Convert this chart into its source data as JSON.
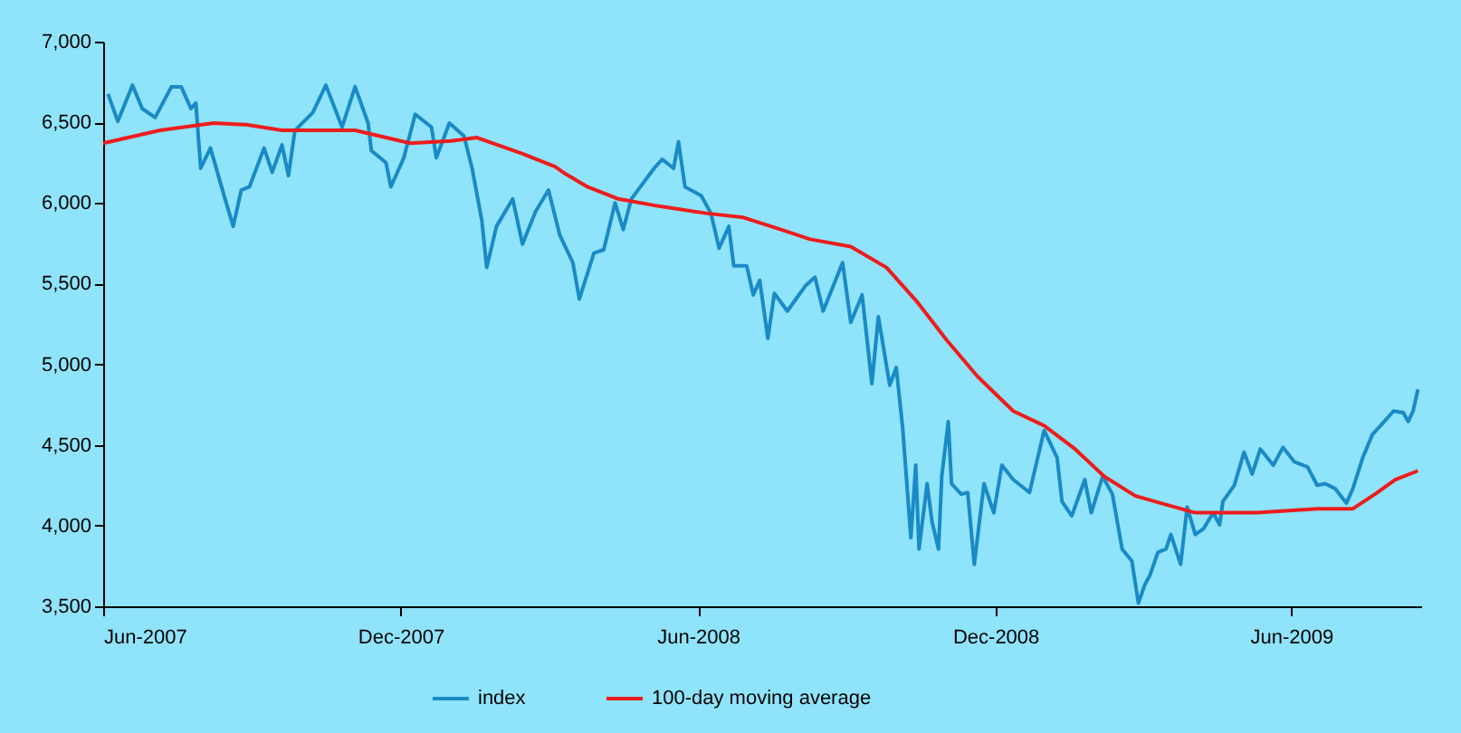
{
  "chart_data": {
    "type": "line",
    "legend": "bottom",
    "grid": false,
    "marker": "none",
    "line_style": "solid",
    "xlim": [
      "2007-06-01",
      "2009-08-20"
    ],
    "xticks": [
      {
        "value": "2007-06-01",
        "label": "Jun-2007"
      },
      {
        "value": "2007-12-01",
        "label": "Dec-2007"
      },
      {
        "value": "2008-06-01",
        "label": "Jun-2008"
      },
      {
        "value": "2008-12-01",
        "label": "Dec-2008"
      },
      {
        "value": "2009-06-01",
        "label": "Jun-2009"
      }
    ],
    "ylim": [
      3500,
      7000
    ],
    "yticks": [
      {
        "value": 3500,
        "label": "3,500"
      },
      {
        "value": 4000,
        "label": "4,000"
      },
      {
        "value": 4500,
        "label": "4,500"
      },
      {
        "value": 5000,
        "label": "5,000"
      },
      {
        "value": 5500,
        "label": "5,500"
      },
      {
        "value": 6000,
        "label": "6,000"
      },
      {
        "value": 6500,
        "label": "6,500"
      },
      {
        "value": 7000,
        "label": "7,000"
      }
    ],
    "series": [
      {
        "name": "index",
        "color": "#1a8ac6",
        "x": [
          "2007-06-04",
          "2007-06-10",
          "2007-06-19",
          "2007-06-25",
          "2007-07-03",
          "2007-07-13",
          "2007-07-19",
          "2007-07-25",
          "2007-07-28",
          "2007-07-31",
          "2007-08-06",
          "2007-08-15",
          "2007-08-20",
          "2007-08-25",
          "2007-08-30",
          "2007-09-08",
          "2007-09-13",
          "2007-09-19",
          "2007-09-23",
          "2007-09-27",
          "2007-10-08",
          "2007-10-16",
          "2007-10-26",
          "2007-11-03",
          "2007-11-11",
          "2007-11-13",
          "2007-11-22",
          "2007-11-25",
          "2007-12-03",
          "2007-12-10",
          "2007-12-20",
          "2007-12-23",
          "2007-12-31",
          "2008-01-09",
          "2008-01-14",
          "2008-01-20",
          "2008-01-23",
          "2008-01-29",
          "2008-02-08",
          "2008-02-14",
          "2008-02-22",
          "2008-03-01",
          "2008-03-08",
          "2008-03-16",
          "2008-03-20",
          "2008-03-29",
          "2008-04-04",
          "2008-04-11",
          "2008-04-16",
          "2008-04-21",
          "2008-05-05",
          "2008-05-10",
          "2008-05-17",
          "2008-05-20",
          "2008-05-24",
          "2008-06-03",
          "2008-06-09",
          "2008-06-14",
          "2008-06-20",
          "2008-06-23",
          "2008-07-01",
          "2008-07-05",
          "2008-07-09",
          "2008-07-14",
          "2008-07-18",
          "2008-07-26",
          "2008-08-06",
          "2008-08-12",
          "2008-08-17",
          "2008-08-29",
          "2008-09-03",
          "2008-09-10",
          "2008-09-16",
          "2008-09-20",
          "2008-09-27",
          "2008-10-01",
          "2008-10-05",
          "2008-10-10",
          "2008-10-13",
          "2008-10-15",
          "2008-10-20",
          "2008-10-23",
          "2008-10-27",
          "2008-10-29",
          "2008-11-02",
          "2008-11-04",
          "2008-11-10",
          "2008-11-14",
          "2008-11-18",
          "2008-11-24",
          "2008-11-30",
          "2008-12-05",
          "2008-12-12",
          "2008-12-22",
          "2008-12-31",
          "2009-01-08",
          "2009-01-11",
          "2009-01-17",
          "2009-01-25",
          "2009-01-29",
          "2009-02-05",
          "2009-02-11",
          "2009-02-17",
          "2009-02-23",
          "2009-02-27",
          "2009-03-03",
          "2009-03-06",
          "2009-03-11",
          "2009-03-16",
          "2009-03-19",
          "2009-03-25",
          "2009-03-29",
          "2009-04-03",
          "2009-04-08",
          "2009-04-14",
          "2009-04-18",
          "2009-04-20",
          "2009-04-27",
          "2009-05-03",
          "2009-05-08",
          "2009-05-13",
          "2009-05-21",
          "2009-05-27",
          "2009-06-03",
          "2009-06-11",
          "2009-06-17",
          "2009-06-22",
          "2009-06-28",
          "2009-07-05",
          "2009-07-09",
          "2009-07-15",
          "2009-07-21",
          "2009-07-26",
          "2009-08-03",
          "2009-08-09",
          "2009-08-12",
          "2009-08-15",
          "2009-08-18"
        ],
        "values": [
          6675,
          6506,
          6730,
          6585,
          6530,
          6720,
          6720,
          6585,
          6620,
          6215,
          6340,
          6025,
          5855,
          6080,
          6100,
          6340,
          6190,
          6360,
          6170,
          6450,
          6560,
          6730,
          6470,
          6720,
          6495,
          6325,
          6250,
          6100,
          6280,
          6550,
          6470,
          6280,
          6495,
          6415,
          6215,
          5890,
          5600,
          5855,
          6025,
          5745,
          5945,
          6080,
          5800,
          5630,
          5405,
          5690,
          5710,
          6000,
          5835,
          6025,
          6215,
          6270,
          6215,
          6380,
          6100,
          6045,
          5935,
          5720,
          5855,
          5610,
          5610,
          5430,
          5520,
          5160,
          5440,
          5330,
          5485,
          5540,
          5330,
          5630,
          5260,
          5430,
          4880,
          5295,
          4870,
          4980,
          4600,
          3925,
          4375,
          3855,
          4260,
          4025,
          3855,
          4305,
          4645,
          4260,
          4195,
          4205,
          3760,
          4260,
          4080,
          4375,
          4285,
          4205,
          4590,
          4420,
          4150,
          4060,
          4285,
          4080,
          4305,
          4195,
          3855,
          3780,
          3520,
          3635,
          3690,
          3835,
          3855,
          3945,
          3760,
          4115,
          3945,
          3980,
          4080,
          4005,
          4150,
          4250,
          4455,
          4320,
          4475,
          4375,
          4485,
          4395,
          4365,
          4250,
          4260,
          4230,
          4140,
          4230,
          4420,
          4565,
          4620,
          4710,
          4700,
          4645,
          4710,
          4845
        ]
      },
      {
        "name": "100-day moving average",
        "color": "#ee1c1c",
        "x": [
          "2007-06-01",
          "2007-07-06",
          "2007-08-08",
          "2007-08-28",
          "2007-09-19",
          "2007-11-03",
          "2007-12-07",
          "2008-01-01",
          "2008-01-17",
          "2008-02-14",
          "2008-03-05",
          "2008-03-10",
          "2008-03-25",
          "2008-04-13",
          "2008-05-08",
          "2008-06-07",
          "2008-06-29",
          "2008-07-22",
          "2008-08-09",
          "2008-09-03",
          "2008-09-25",
          "2008-10-14",
          "2008-11-01",
          "2008-11-20",
          "2008-12-12",
          "2008-12-31",
          "2009-01-19",
          "2009-02-06",
          "2009-02-25",
          "2009-03-16",
          "2009-04-03",
          "2009-05-11",
          "2009-06-17",
          "2009-07-09",
          "2009-07-24",
          "2009-08-04",
          "2009-08-18"
        ],
        "values": [
          6370,
          6450,
          6495,
          6485,
          6450,
          6450,
          6370,
          6385,
          6405,
          6305,
          6225,
          6190,
          6100,
          6025,
          5980,
          5935,
          5910,
          5835,
          5775,
          5730,
          5600,
          5385,
          5150,
          4925,
          4710,
          4620,
          4475,
          4305,
          4185,
          4130,
          4080,
          4080,
          4105,
          4105,
          4205,
          4285,
          4340
        ]
      }
    ]
  }
}
